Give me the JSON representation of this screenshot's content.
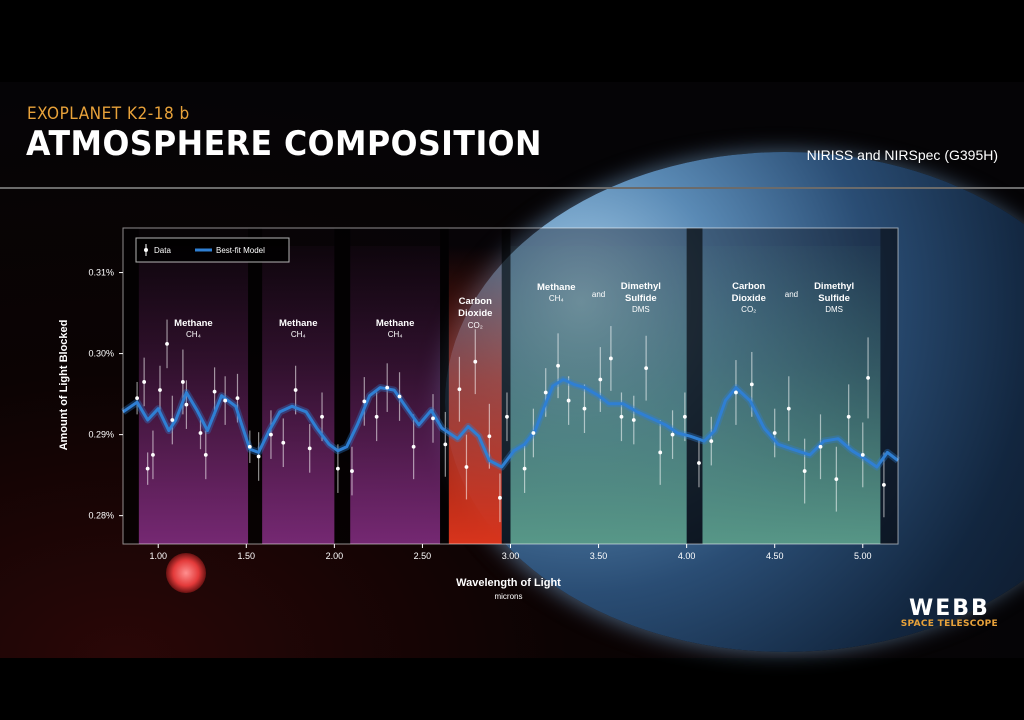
{
  "header": {
    "overline": "EXOPLANET K2-18 b",
    "title": "ATMOSPHERE COMPOSITION",
    "instrument": "NIRISS and NIRSpec (G395H)"
  },
  "logo": {
    "main": "WEBB",
    "sub": "SPACE TELESCOPE"
  },
  "colors": {
    "methane_band": "#7a2a78",
    "co2_band": "#d8341c",
    "dms_band": "#5a9c8a",
    "model_line": "#2f7fd3",
    "data_point": "#ffffff"
  },
  "chart_data": {
    "type": "scatter",
    "xlabel": "Wavelength of Light",
    "xlabel_sub": "microns",
    "ylabel": "Amount of Light Blocked",
    "xlim": [
      0.8,
      5.2
    ],
    "ylim": [
      0.2765,
      0.3155
    ],
    "x_ticks": [
      1.0,
      1.5,
      2.0,
      2.5,
      3.0,
      3.5,
      4.0,
      4.5,
      5.0
    ],
    "x_tick_labels": [
      "1.00",
      "1.50",
      "2.00",
      "2.50",
      "3.00",
      "3.50",
      "4.00",
      "4.50",
      "5.00"
    ],
    "y_ticks": [
      0.28,
      0.29,
      0.3,
      0.31
    ],
    "y_tick_labels": [
      "0.28%",
      "0.29%",
      "0.30%",
      "0.31%"
    ],
    "legend": {
      "position": "top-left",
      "entries": [
        "Data",
        "Best-fit Model"
      ]
    },
    "bands": [
      {
        "x0": 0.89,
        "x1": 1.51,
        "kind": "methane",
        "label": "Methane",
        "sub": "CH4"
      },
      {
        "x0": 1.59,
        "x1": 2.0,
        "kind": "methane",
        "label": "Methane",
        "sub": "CH4"
      },
      {
        "x0": 2.09,
        "x1": 2.6,
        "kind": "methane",
        "label": "Methane",
        "sub": "CH4"
      },
      {
        "x0": 2.65,
        "x1": 2.95,
        "kind": "co2",
        "label": "Carbon Dioxide",
        "sub": "CO2"
      },
      {
        "x0": 3.0,
        "x1": 4.0,
        "kind": "dms",
        "label": "Methane",
        "sub": "CH4",
        "and": "and",
        "label2": "Dimethyl Sulfide",
        "sub2": "DMS"
      },
      {
        "x0": 4.09,
        "x1": 5.1,
        "kind": "dms",
        "label": "Carbon Dioxide",
        "sub": "CO2",
        "and": "and",
        "label2": "Dimethyl Sulfide",
        "sub2": "DMS"
      }
    ],
    "data_points": [
      {
        "x": 0.88,
        "y": 0.2945,
        "err": 0.002
      },
      {
        "x": 0.92,
        "y": 0.2965,
        "err": 0.003
      },
      {
        "x": 0.94,
        "y": 0.2858,
        "err": 0.002
      },
      {
        "x": 0.97,
        "y": 0.2875,
        "err": 0.003
      },
      {
        "x": 1.01,
        "y": 0.2955,
        "err": 0.003
      },
      {
        "x": 1.05,
        "y": 0.3012,
        "err": 0.003
      },
      {
        "x": 1.08,
        "y": 0.2918,
        "err": 0.003
      },
      {
        "x": 1.14,
        "y": 0.2965,
        "err": 0.004
      },
      {
        "x": 1.16,
        "y": 0.2937,
        "err": 0.003
      },
      {
        "x": 1.24,
        "y": 0.2902,
        "err": 0.002
      },
      {
        "x": 1.27,
        "y": 0.2875,
        "err": 0.003
      },
      {
        "x": 1.32,
        "y": 0.2953,
        "err": 0.003
      },
      {
        "x": 1.38,
        "y": 0.2942,
        "err": 0.003
      },
      {
        "x": 1.45,
        "y": 0.2945,
        "err": 0.003
      },
      {
        "x": 1.52,
        "y": 0.2885,
        "err": 0.002
      },
      {
        "x": 1.57,
        "y": 0.2873,
        "err": 0.003
      },
      {
        "x": 1.64,
        "y": 0.29,
        "err": 0.003
      },
      {
        "x": 1.71,
        "y": 0.289,
        "err": 0.003
      },
      {
        "x": 1.78,
        "y": 0.2955,
        "err": 0.003
      },
      {
        "x": 1.86,
        "y": 0.2883,
        "err": 0.003
      },
      {
        "x": 1.93,
        "y": 0.2922,
        "err": 0.003
      },
      {
        "x": 2.02,
        "y": 0.2858,
        "err": 0.003
      },
      {
        "x": 2.1,
        "y": 0.2855,
        "err": 0.003
      },
      {
        "x": 2.17,
        "y": 0.2941,
        "err": 0.003
      },
      {
        "x": 2.24,
        "y": 0.2922,
        "err": 0.003
      },
      {
        "x": 2.3,
        "y": 0.2958,
        "err": 0.003
      },
      {
        "x": 2.37,
        "y": 0.2947,
        "err": 0.003
      },
      {
        "x": 2.45,
        "y": 0.2885,
        "err": 0.004
      },
      {
        "x": 2.56,
        "y": 0.292,
        "err": 0.003
      },
      {
        "x": 2.63,
        "y": 0.2888,
        "err": 0.004
      },
      {
        "x": 2.71,
        "y": 0.2956,
        "err": 0.004
      },
      {
        "x": 2.75,
        "y": 0.286,
        "err": 0.004
      },
      {
        "x": 2.8,
        "y": 0.299,
        "err": 0.004
      },
      {
        "x": 2.88,
        "y": 0.2898,
        "err": 0.004
      },
      {
        "x": 2.94,
        "y": 0.2822,
        "err": 0.003
      },
      {
        "x": 2.98,
        "y": 0.2922,
        "err": 0.003
      },
      {
        "x": 3.08,
        "y": 0.2858,
        "err": 0.003
      },
      {
        "x": 3.13,
        "y": 0.2902,
        "err": 0.003
      },
      {
        "x": 3.2,
        "y": 0.2952,
        "err": 0.003
      },
      {
        "x": 3.27,
        "y": 0.2985,
        "err": 0.004
      },
      {
        "x": 3.33,
        "y": 0.2942,
        "err": 0.003
      },
      {
        "x": 3.42,
        "y": 0.2932,
        "err": 0.003
      },
      {
        "x": 3.51,
        "y": 0.2968,
        "err": 0.004
      },
      {
        "x": 3.57,
        "y": 0.2994,
        "err": 0.004
      },
      {
        "x": 3.63,
        "y": 0.2922,
        "err": 0.003
      },
      {
        "x": 3.7,
        "y": 0.2918,
        "err": 0.003
      },
      {
        "x": 3.77,
        "y": 0.2982,
        "err": 0.004
      },
      {
        "x": 3.85,
        "y": 0.2878,
        "err": 0.004
      },
      {
        "x": 3.92,
        "y": 0.29,
        "err": 0.003
      },
      {
        "x": 3.99,
        "y": 0.2922,
        "err": 0.003
      },
      {
        "x": 4.07,
        "y": 0.2865,
        "err": 0.003
      },
      {
        "x": 4.14,
        "y": 0.2892,
        "err": 0.003
      },
      {
        "x": 4.28,
        "y": 0.2952,
        "err": 0.004
      },
      {
        "x": 4.37,
        "y": 0.2962,
        "err": 0.004
      },
      {
        "x": 4.5,
        "y": 0.2902,
        "err": 0.003
      },
      {
        "x": 4.58,
        "y": 0.2932,
        "err": 0.004
      },
      {
        "x": 4.67,
        "y": 0.2855,
        "err": 0.004
      },
      {
        "x": 4.76,
        "y": 0.2885,
        "err": 0.004
      },
      {
        "x": 4.85,
        "y": 0.2845,
        "err": 0.004
      },
      {
        "x": 4.92,
        "y": 0.2922,
        "err": 0.004
      },
      {
        "x": 5.0,
        "y": 0.2875,
        "err": 0.004
      },
      {
        "x": 5.03,
        "y": 0.297,
        "err": 0.005
      },
      {
        "x": 5.12,
        "y": 0.2838,
        "err": 0.004
      }
    ],
    "model": [
      [
        0.8,
        0.2928
      ],
      [
        0.88,
        0.294
      ],
      [
        0.94,
        0.2918
      ],
      [
        1.0,
        0.2932
      ],
      [
        1.06,
        0.2905
      ],
      [
        1.1,
        0.2918
      ],
      [
        1.16,
        0.2952
      ],
      [
        1.22,
        0.293
      ],
      [
        1.28,
        0.2905
      ],
      [
        1.36,
        0.2948
      ],
      [
        1.44,
        0.2935
      ],
      [
        1.52,
        0.2882
      ],
      [
        1.57,
        0.2878
      ],
      [
        1.63,
        0.2905
      ],
      [
        1.69,
        0.2928
      ],
      [
        1.76,
        0.2935
      ],
      [
        1.84,
        0.2928
      ],
      [
        1.9,
        0.2908
      ],
      [
        1.97,
        0.2888
      ],
      [
        2.02,
        0.288
      ],
      [
        2.07,
        0.2885
      ],
      [
        2.13,
        0.2912
      ],
      [
        2.2,
        0.2948
      ],
      [
        2.26,
        0.2958
      ],
      [
        2.34,
        0.2955
      ],
      [
        2.42,
        0.293
      ],
      [
        2.48,
        0.2912
      ],
      [
        2.55,
        0.293
      ],
      [
        2.61,
        0.2908
      ],
      [
        2.7,
        0.2895
      ],
      [
        2.76,
        0.291
      ],
      [
        2.82,
        0.2898
      ],
      [
        2.88,
        0.2868
      ],
      [
        2.95,
        0.286
      ],
      [
        3.02,
        0.288
      ],
      [
        3.08,
        0.2888
      ],
      [
        3.14,
        0.2905
      ],
      [
        3.18,
        0.2928
      ],
      [
        3.24,
        0.296
      ],
      [
        3.3,
        0.2968
      ],
      [
        3.36,
        0.2962
      ],
      [
        3.42,
        0.2958
      ],
      [
        3.5,
        0.2948
      ],
      [
        3.56,
        0.2938
      ],
      [
        3.64,
        0.2938
      ],
      [
        3.72,
        0.2928
      ],
      [
        3.8,
        0.292
      ],
      [
        3.88,
        0.2912
      ],
      [
        3.95,
        0.2902
      ],
      [
        4.02,
        0.2898
      ],
      [
        4.1,
        0.2892
      ],
      [
        4.16,
        0.2905
      ],
      [
        4.22,
        0.2942
      ],
      [
        4.28,
        0.2958
      ],
      [
        4.36,
        0.2942
      ],
      [
        4.44,
        0.2908
      ],
      [
        4.52,
        0.2888
      ],
      [
        4.6,
        0.2882
      ],
      [
        4.7,
        0.2875
      ],
      [
        4.78,
        0.2892
      ],
      [
        4.86,
        0.2895
      ],
      [
        4.94,
        0.288
      ],
      [
        5.0,
        0.2872
      ],
      [
        5.08,
        0.286
      ],
      [
        5.14,
        0.2878
      ],
      [
        5.2,
        0.2868
      ]
    ]
  }
}
